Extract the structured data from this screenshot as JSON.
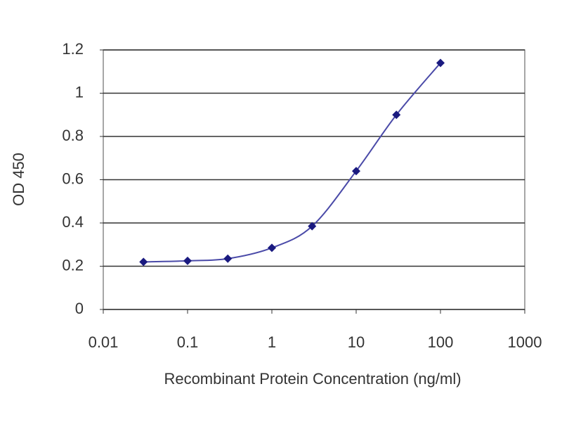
{
  "chart_data": {
    "type": "line",
    "x_label": "Recombinant Protein Concentration (ng/ml)",
    "y_label": "OD 450",
    "x": [
      0.03,
      0.1,
      0.3,
      1,
      3,
      10,
      30,
      100
    ],
    "values": [
      0.22,
      0.225,
      0.235,
      0.285,
      0.385,
      0.64,
      0.9,
      1.14
    ],
    "color": "#1a1a80",
    "line_color": "#4a4aa8",
    "xscale": "log",
    "xlim": [
      0.01,
      1000
    ],
    "xticks": [
      0.01,
      0.1,
      1,
      10,
      100,
      1000
    ],
    "ylim": [
      0,
      1.2
    ],
    "yticks": [
      0,
      0.2,
      0.4,
      0.6,
      0.8,
      1,
      1.2
    ],
    "grid": true
  }
}
